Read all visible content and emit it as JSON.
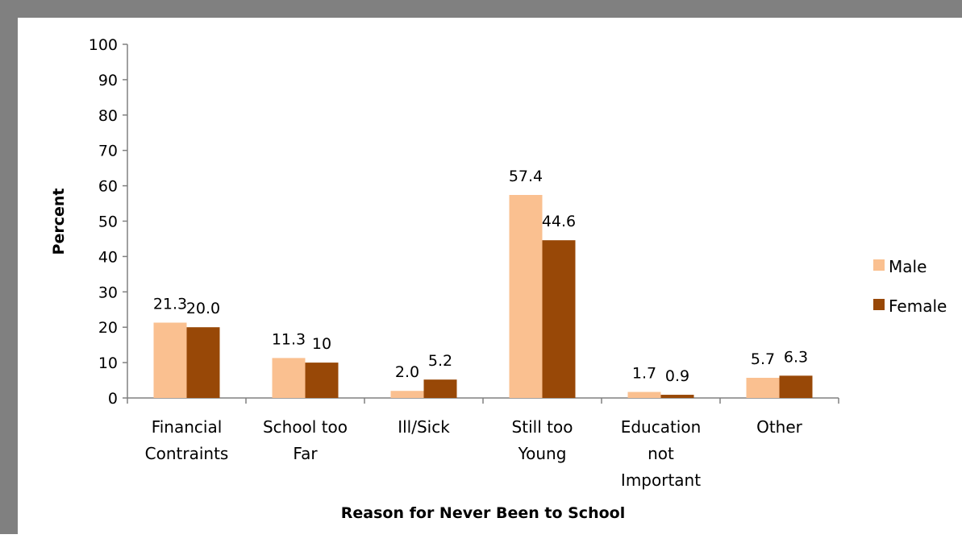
{
  "chart_data": {
    "type": "bar",
    "title": "",
    "xlabel": "Reason for Never Been to School",
    "ylabel": "Percent",
    "ylim": [
      0,
      100
    ],
    "yticks": [
      "0",
      "10",
      "20",
      "30",
      "40",
      "50",
      "60",
      "70",
      "80",
      "90",
      "100"
    ],
    "categories": [
      [
        "Financial",
        "Contraints"
      ],
      [
        "School too",
        "Far"
      ],
      [
        "Ill/Sick"
      ],
      [
        "Still too",
        "Young"
      ],
      [
        "Education",
        "not",
        "Important"
      ],
      [
        "Other"
      ]
    ],
    "series": [
      {
        "name": "Male",
        "color": "#FAC090",
        "values": [
          21.3,
          11.3,
          2.0,
          57.4,
          1.7,
          5.7
        ],
        "labels": [
          "21.3",
          "11.3",
          "2.0",
          "57.4",
          "1.7",
          "5.7"
        ]
      },
      {
        "name": "Female",
        "color": "#984807",
        "values": [
          20.0,
          10,
          5.2,
          44.6,
          0.9,
          6.3
        ],
        "labels": [
          "20.0",
          "10",
          "5.2",
          "44.6",
          "0.9",
          "6.3"
        ]
      }
    ],
    "legend_position": "right",
    "grid": false
  }
}
